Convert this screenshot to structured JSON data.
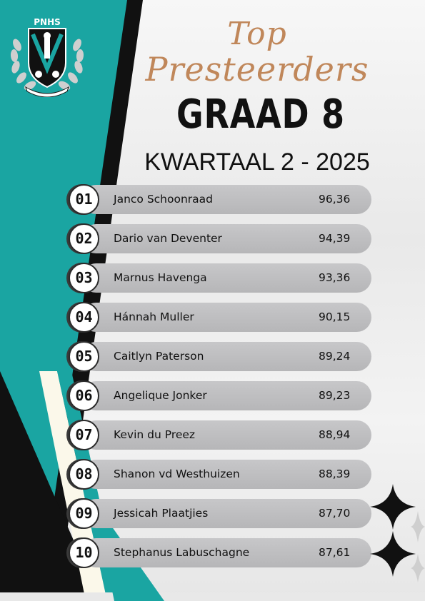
{
  "logo": {
    "text": "PNHS"
  },
  "title": {
    "line1": "Top",
    "line2": "Presteerders"
  },
  "grade": "GRAAD 8",
  "term": "KWARTAAL 2 - 2025",
  "colors": {
    "teal": "#1aa5a2",
    "black": "#111111",
    "gold": "#c0875a",
    "bar": "#bfbfc1"
  },
  "rankings": [
    {
      "rank": "01",
      "name": "Janco Schoonraad",
      "score": "96,36"
    },
    {
      "rank": "02",
      "name": "Dario van Deventer",
      "score": "94,39"
    },
    {
      "rank": "03",
      "name": "Marnus Havenga",
      "score": "93,36"
    },
    {
      "rank": "04",
      "name": "Hánnah Muller",
      "score": "90,15"
    },
    {
      "rank": "05",
      "name": "Caitlyn Paterson",
      "score": "89,24"
    },
    {
      "rank": "06",
      "name": "Angelique Jonker",
      "score": "89,23"
    },
    {
      "rank": "07",
      "name": "Kevin du Preez",
      "score": "88,94"
    },
    {
      "rank": "08",
      "name": "Shanon vd Westhuizen",
      "score": "88,39"
    },
    {
      "rank": "09",
      "name": "Jessicah Plaatjies",
      "score": "87,70"
    },
    {
      "rank": "10",
      "name": "Stephanus Labuschagne",
      "score": "87,61"
    }
  ]
}
